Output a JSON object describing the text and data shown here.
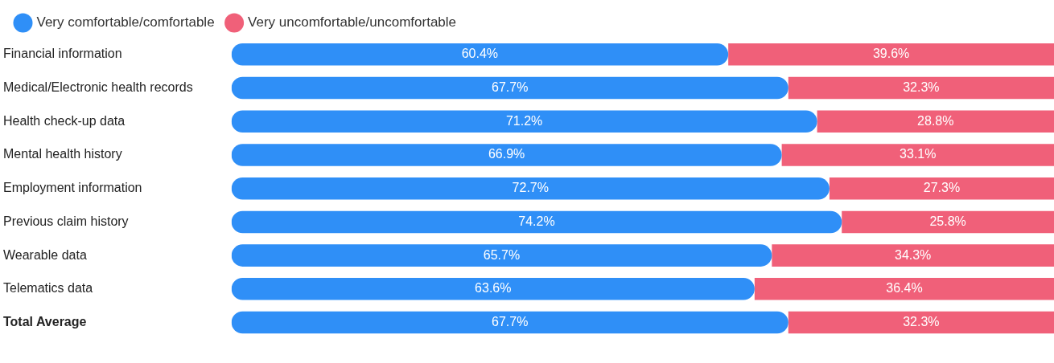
{
  "chart_data": {
    "type": "bar",
    "orientation": "horizontal",
    "stacked": true,
    "legend": "top left",
    "tick_labels": "y",
    "categories": [
      "Financial information",
      "Medical/Electronic health records",
      "Health check-up data",
      "Mental health history",
      "Employment information",
      "Previous claim history",
      "Wearable data",
      "Telematics data",
      "Total Average"
    ],
    "series": [
      {
        "name": "Very comfortable/comfortable",
        "color": "#2f8ff7",
        "values": [
          60.4,
          67.7,
          71.2,
          66.9,
          72.7,
          74.2,
          65.7,
          63.6,
          67.7
        ],
        "value_labels": [
          "60.4%",
          "67.7%",
          "71.2%",
          "66.9%",
          "72.7%",
          "74.2%",
          "65.7%",
          "63.6%",
          "67.7%"
        ]
      },
      {
        "name": "Very uncomfortable/uncomfortable",
        "color": "#f06079",
        "values": [
          39.6,
          32.3,
          28.8,
          33.1,
          27.3,
          25.8,
          34.3,
          36.4,
          32.3
        ],
        "value_labels": [
          "39.6%",
          "32.3%",
          "28.8%",
          "33.1%",
          "27.3%",
          "25.8%",
          "34.3%",
          "36.4%",
          "32.3%"
        ]
      }
    ]
  }
}
